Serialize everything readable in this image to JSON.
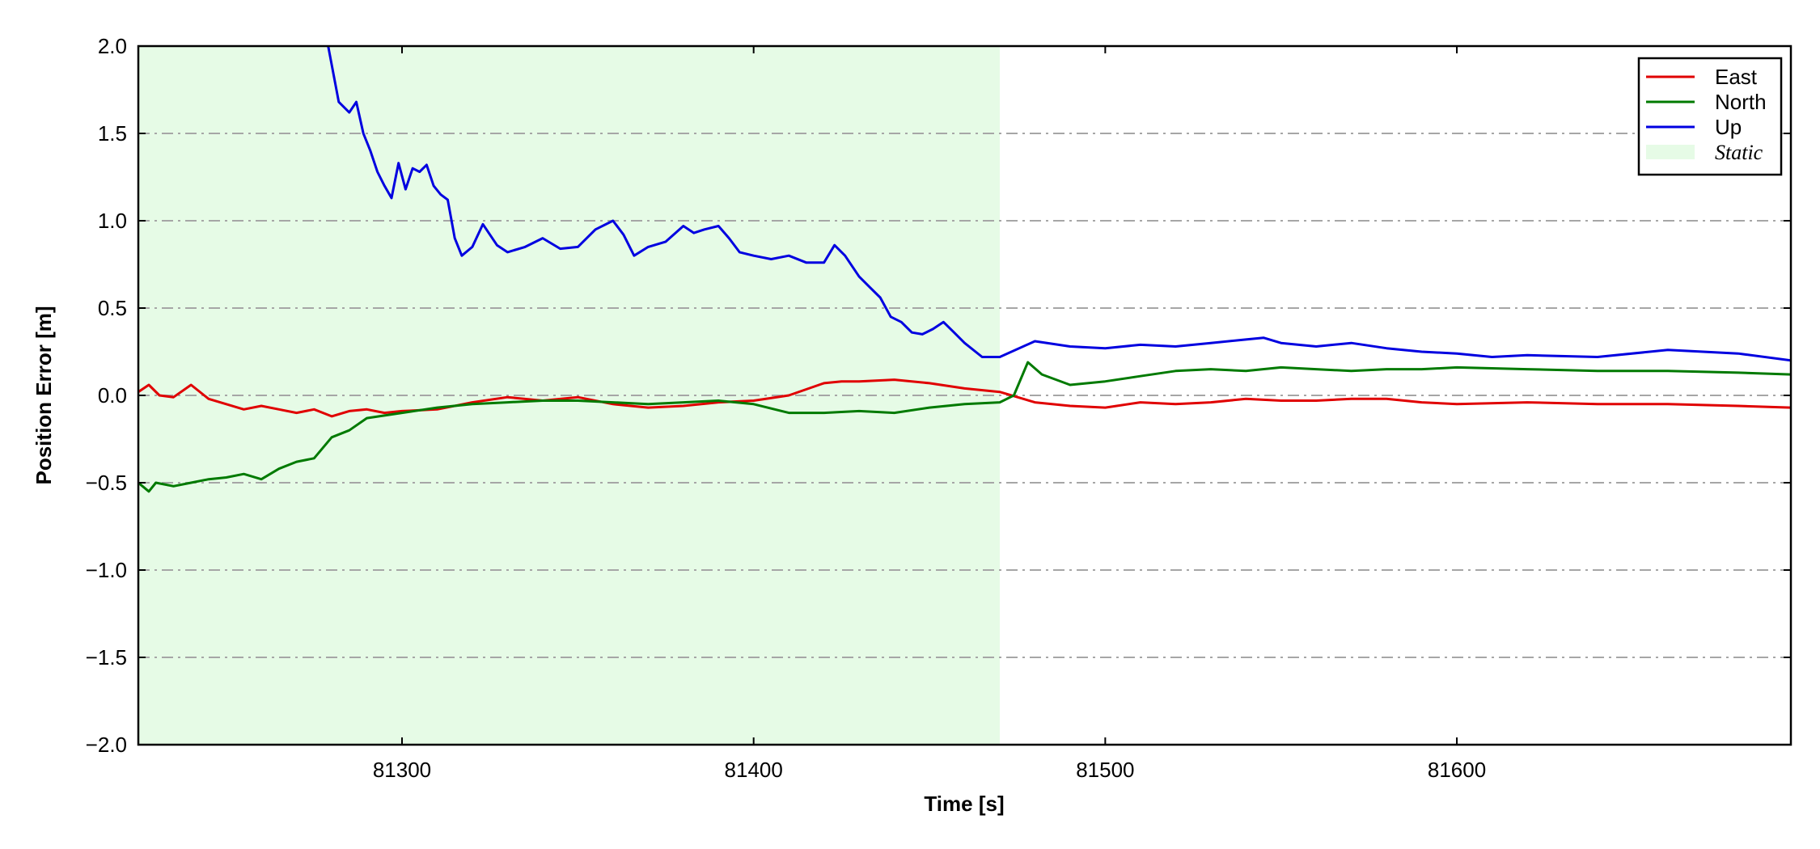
{
  "chart_data": {
    "type": "line",
    "xlabel": "Time [s]",
    "ylabel": "Position Error [m]",
    "xlim": [
      81225,
      81695
    ],
    "ylim": [
      -2.0,
      2.0
    ],
    "xticks": [
      81300,
      81400,
      81500,
      81600
    ],
    "xtick_labels": [
      "81300",
      "81400",
      "81500",
      "81600"
    ],
    "yticks": [
      -2.0,
      -1.5,
      -1.0,
      -0.5,
      0.0,
      0.5,
      1.0,
      1.5,
      2.0
    ],
    "ytick_labels": [
      "−2.0",
      "−1.5",
      "−1.0",
      "−0.5",
      "0.0",
      "0.5",
      "1.0",
      "1.5",
      "2.0"
    ],
    "grid": "horizontal dash-dot",
    "legend_position": "top-right",
    "static_region": {
      "label": "Static",
      "x_start": 81225,
      "x_end": 81470,
      "color": "#e6fbe6"
    },
    "series": [
      {
        "name": "East",
        "color": "#e00000",
        "x": [
          81225,
          81228,
          81231,
          81235,
          81240,
          81245,
          81250,
          81255,
          81260,
          81265,
          81270,
          81275,
          81280,
          81285,
          81290,
          81295,
          81300,
          81310,
          81320,
          81330,
          81340,
          81350,
          81360,
          81370,
          81380,
          81390,
          81400,
          81410,
          81420,
          81425,
          81430,
          81440,
          81450,
          81460,
          81470,
          81480,
          81490,
          81500,
          81510,
          81520,
          81530,
          81540,
          81550,
          81560,
          81570,
          81580,
          81590,
          81600,
          81620,
          81640,
          81660,
          81680,
          81695
        ],
        "y": [
          0.02,
          0.06,
          0.0,
          -0.01,
          0.06,
          -0.02,
          -0.05,
          -0.08,
          -0.06,
          -0.08,
          -0.1,
          -0.08,
          -0.12,
          -0.09,
          -0.08,
          -0.1,
          -0.09,
          -0.08,
          -0.04,
          -0.01,
          -0.03,
          -0.01,
          -0.05,
          -0.07,
          -0.06,
          -0.04,
          -0.03,
          0.0,
          0.07,
          0.08,
          0.08,
          0.09,
          0.07,
          0.04,
          0.02,
          -0.04,
          -0.06,
          -0.07,
          -0.04,
          -0.05,
          -0.04,
          -0.02,
          -0.03,
          -0.03,
          -0.02,
          -0.02,
          -0.04,
          -0.05,
          -0.04,
          -0.05,
          -0.05,
          -0.06,
          -0.07
        ]
      },
      {
        "name": "North",
        "color": "#007a00",
        "x": [
          81225,
          81228,
          81230,
          81235,
          81240,
          81245,
          81250,
          81255,
          81260,
          81265,
          81270,
          81275,
          81280,
          81285,
          81290,
          81300,
          81310,
          81320,
          81330,
          81340,
          81350,
          81360,
          81370,
          81380,
          81390,
          81400,
          81410,
          81420,
          81430,
          81440,
          81450,
          81460,
          81470,
          81474,
          81478,
          81482,
          81490,
          81500,
          81510,
          81520,
          81530,
          81540,
          81550,
          81560,
          81570,
          81580,
          81590,
          81600,
          81620,
          81640,
          81660,
          81680,
          81695
        ],
        "y": [
          -0.5,
          -0.55,
          -0.5,
          -0.52,
          -0.5,
          -0.48,
          -0.47,
          -0.45,
          -0.48,
          -0.42,
          -0.38,
          -0.36,
          -0.24,
          -0.2,
          -0.13,
          -0.1,
          -0.07,
          -0.05,
          -0.04,
          -0.03,
          -0.03,
          -0.04,
          -0.05,
          -0.04,
          -0.03,
          -0.05,
          -0.1,
          -0.1,
          -0.09,
          -0.1,
          -0.07,
          -0.05,
          -0.04,
          0.0,
          0.19,
          0.12,
          0.06,
          0.08,
          0.11,
          0.14,
          0.15,
          0.14,
          0.16,
          0.15,
          0.14,
          0.15,
          0.15,
          0.16,
          0.15,
          0.14,
          0.14,
          0.13,
          0.12
        ]
      },
      {
        "name": "Up",
        "color": "#0000e0",
        "x": [
          81279,
          81282,
          81285,
          81287,
          81289,
          81291,
          81293,
          81295,
          81297,
          81299,
          81301,
          81303,
          81305,
          81307,
          81309,
          81311,
          81313,
          81315,
          81317,
          81320,
          81323,
          81327,
          81330,
          81335,
          81340,
          81345,
          81350,
          81355,
          81360,
          81363,
          81366,
          81370,
          81375,
          81380,
          81383,
          81386,
          81390,
          81393,
          81396,
          81400,
          81405,
          81410,
          81415,
          81420,
          81423,
          81426,
          81430,
          81433,
          81436,
          81439,
          81442,
          81445,
          81448,
          81451,
          81454,
          81457,
          81460,
          81465,
          81470,
          81480,
          81490,
          81500,
          81510,
          81520,
          81530,
          81540,
          81545,
          81550,
          81560,
          81570,
          81580,
          81590,
          81600,
          81610,
          81620,
          81640,
          81660,
          81680,
          81695
        ],
        "y": [
          2.0,
          1.68,
          1.62,
          1.68,
          1.5,
          1.4,
          1.28,
          1.2,
          1.13,
          1.33,
          1.18,
          1.3,
          1.28,
          1.32,
          1.2,
          1.15,
          1.12,
          0.9,
          0.8,
          0.85,
          0.98,
          0.86,
          0.82,
          0.85,
          0.9,
          0.84,
          0.85,
          0.95,
          1.0,
          0.92,
          0.8,
          0.85,
          0.88,
          0.97,
          0.93,
          0.95,
          0.97,
          0.9,
          0.82,
          0.8,
          0.78,
          0.8,
          0.76,
          0.76,
          0.86,
          0.8,
          0.68,
          0.62,
          0.56,
          0.45,
          0.42,
          0.36,
          0.35,
          0.38,
          0.42,
          0.36,
          0.3,
          0.22,
          0.22,
          0.31,
          0.28,
          0.27,
          0.29,
          0.28,
          0.3,
          0.32,
          0.33,
          0.3,
          0.28,
          0.3,
          0.27,
          0.25,
          0.24,
          0.22,
          0.23,
          0.22,
          0.26,
          0.24,
          0.2
        ]
      }
    ]
  }
}
